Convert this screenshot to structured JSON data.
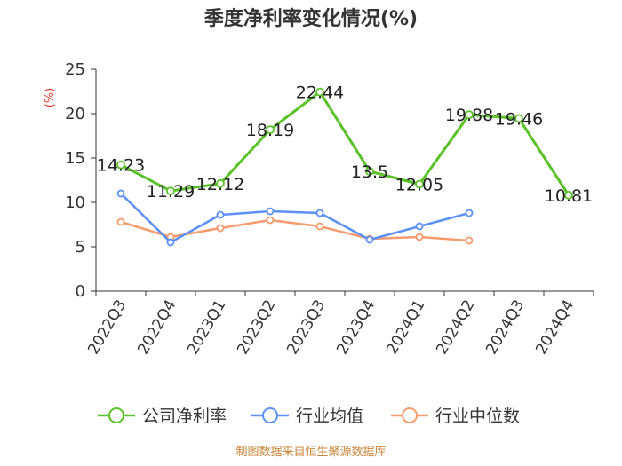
{
  "chart_data": {
    "type": "line",
    "title": "季度净利率变化情况(%)",
    "ylabel": "(%)",
    "ylim": [
      0,
      25
    ],
    "yticks": [
      0,
      5,
      10,
      15,
      20,
      25
    ],
    "categories": [
      "2022Q3",
      "2022Q4",
      "2023Q1",
      "2023Q2",
      "2023Q3",
      "2023Q4",
      "2024Q1",
      "2024Q2",
      "2024Q3",
      "2024Q4"
    ],
    "series": [
      {
        "name": "公司净利率",
        "color": "#5ac229",
        "values": [
          14.23,
          11.29,
          12.12,
          18.19,
          22.44,
          13.5,
          12.05,
          19.88,
          19.46,
          10.81
        ],
        "labels": [
          "14.23",
          "11.29",
          "12.12",
          "18.19",
          "22.44",
          "13.5",
          "12.05",
          "19.88",
          "19.46",
          "10.81"
        ]
      },
      {
        "name": "行业均值",
        "color": "#5b8ff9",
        "values": [
          11.0,
          5.5,
          8.6,
          9.0,
          8.8,
          5.8,
          7.3,
          8.8,
          null,
          null
        ]
      },
      {
        "name": "行业中位数",
        "color": "#f79a6c",
        "values": [
          7.8,
          6.1,
          7.1,
          8.0,
          7.3,
          5.9,
          6.1,
          5.7,
          null,
          null
        ]
      }
    ],
    "grid": false,
    "legend_position": "bottom"
  },
  "footer": {
    "source": "制图数据来自恒生聚源数据库"
  }
}
